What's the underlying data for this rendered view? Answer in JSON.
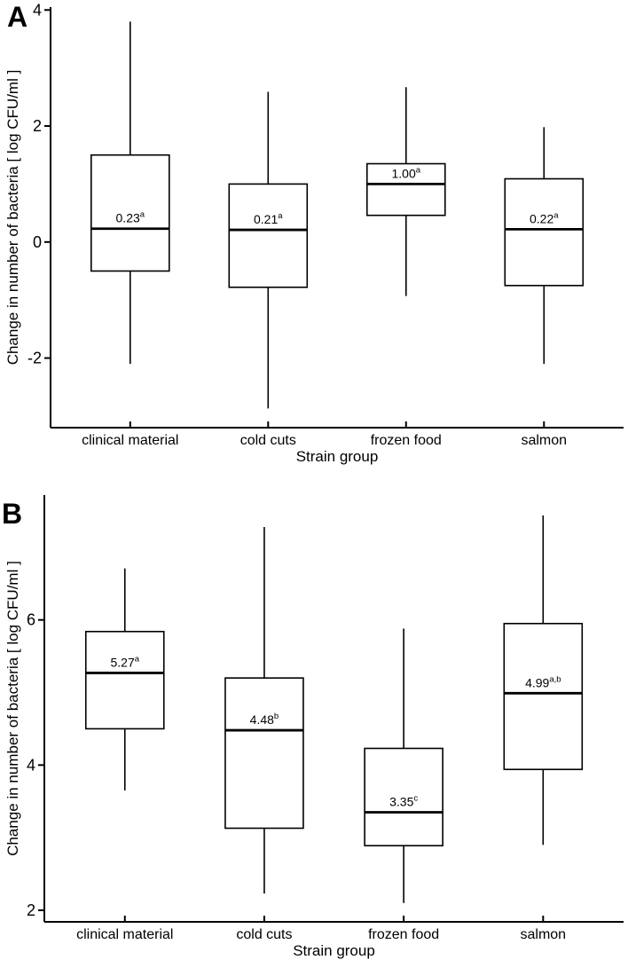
{
  "chart_data": [
    {
      "type": "boxplot",
      "panel": "A",
      "xlabel": "Strain group",
      "ylabel": "Change in number of bacteria [ log CFU/ml ]",
      "categories": [
        "clinical material",
        "cold cuts",
        "frozen food",
        "salmon"
      ],
      "yticks": [
        4,
        2,
        0,
        -2
      ],
      "ylim": [
        -3.2,
        4.05
      ],
      "legend": "none",
      "grid": false,
      "colors": {
        "line": "#000000",
        "box_fill": "#ffffff",
        "background": "#ffffff"
      },
      "series": [
        {
          "category": "clinical material",
          "whisker_low": -2.1,
          "q1": -0.5,
          "median": 0.23,
          "q3": 1.5,
          "whisker_high": 3.8,
          "label": "0.23",
          "superscript": "a"
        },
        {
          "category": "cold cuts",
          "whisker_low": -2.87,
          "q1": -0.78,
          "median": 0.21,
          "q3": 1.0,
          "whisker_high": 2.59,
          "label": "0.21",
          "superscript": "a"
        },
        {
          "category": "frozen food",
          "whisker_low": -0.93,
          "q1": 0.46,
          "median": 1.0,
          "q3": 1.35,
          "whisker_high": 2.67,
          "label": "1.00",
          "superscript": "a"
        },
        {
          "category": "salmon",
          "whisker_low": -2.1,
          "q1": -0.75,
          "median": 0.22,
          "q3": 1.09,
          "whisker_high": 1.98,
          "label": "0.22",
          "superscript": "a"
        }
      ]
    },
    {
      "type": "boxplot",
      "panel": "B",
      "xlabel": "Strain group",
      "ylabel": "Change in number of bacteria [ log CFU/ml ]",
      "categories": [
        "clinical material",
        "cold cuts",
        "frozen food",
        "salmon"
      ],
      "yticks": [
        6,
        4,
        2
      ],
      "ylim": [
        1.84,
        7.72
      ],
      "legend": "none",
      "grid": false,
      "colors": {
        "line": "#000000",
        "box_fill": "#ffffff",
        "background": "#ffffff"
      },
      "series": [
        {
          "category": "clinical material",
          "whisker_low": 3.65,
          "q1": 4.5,
          "median": 5.27,
          "q3": 5.84,
          "whisker_high": 6.71,
          "label": "5.27",
          "superscript": "a"
        },
        {
          "category": "cold cuts",
          "whisker_low": 2.23,
          "q1": 3.13,
          "median": 4.48,
          "q3": 5.2,
          "whisker_high": 7.28,
          "label": "4.48",
          "superscript": "b"
        },
        {
          "category": "frozen food",
          "whisker_low": 2.1,
          "q1": 2.89,
          "median": 3.35,
          "q3": 4.23,
          "whisker_high": 5.88,
          "label": "3.35",
          "superscript": "c"
        },
        {
          "category": "salmon",
          "whisker_low": 2.9,
          "q1": 3.94,
          "median": 4.99,
          "q3": 5.95,
          "whisker_high": 7.44,
          "label": "4.99",
          "superscript": "a,b"
        }
      ]
    }
  ]
}
